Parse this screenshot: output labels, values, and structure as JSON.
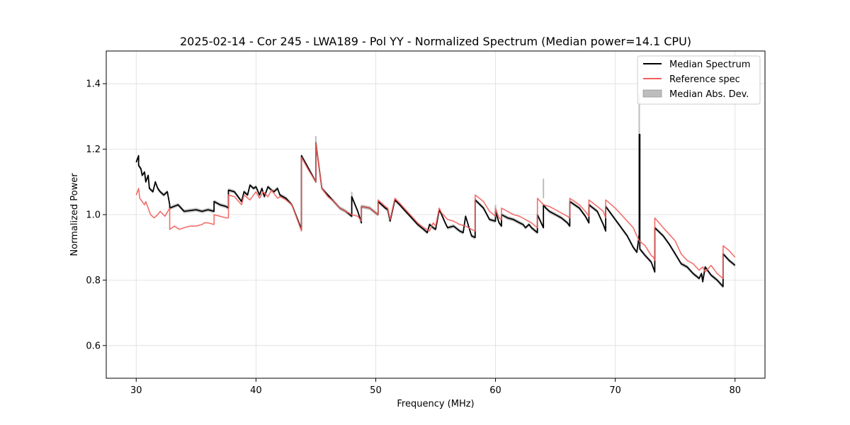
{
  "chart_data": {
    "type": "line",
    "title": "2025-02-14 - Cor 245 - LWA189 - Pol YY - Normalized Spectrum (Median power=14.1 CPU)",
    "xlabel": "Frequency (MHz)",
    "ylabel": "Normalized Power",
    "xlim": [
      27.5,
      82.5
    ],
    "ylim": [
      0.5,
      1.5
    ],
    "xticks": [
      30,
      40,
      50,
      60,
      70,
      80
    ],
    "yticks": [
      0.6,
      0.8,
      1.0,
      1.2,
      1.4
    ],
    "grid": true,
    "legend_position": "top-right",
    "colors": {
      "median": "#000000",
      "reference": "#f25f5c",
      "mad": "#bdbdbd"
    },
    "series": [
      {
        "name": "Median Spectrum",
        "x": [
          30.0,
          30.2,
          30.2,
          30.4,
          30.5,
          30.7,
          30.8,
          31.0,
          31.1,
          31.4,
          31.6,
          31.8,
          32.0,
          32.3,
          32.6,
          32.8,
          32.8,
          33.5,
          34.0,
          35.0,
          35.5,
          36.0,
          36.5,
          36.5,
          37.0,
          37.5,
          37.7,
          37.7,
          38.2,
          38.8,
          39.0,
          39.3,
          39.5,
          39.8,
          40.0,
          40.3,
          40.5,
          40.7,
          41.0,
          41.3,
          41.5,
          41.8,
          42.0,
          42.5,
          43.0,
          43.8,
          43.8,
          44.4,
          45.0,
          45.0,
          45.5,
          46.0,
          46.5,
          47.0,
          47.5,
          48.0,
          48.0,
          48.5,
          48.8,
          48.8,
          49.5,
          50.0,
          50.2,
          50.2,
          50.8,
          51.0,
          51.2,
          51.6,
          52.0,
          52.5,
          53.0,
          53.5,
          54.0,
          54.3,
          54.5,
          54.8,
          55.0,
          55.3,
          55.5,
          55.8,
          56.0,
          56.5,
          57.0,
          57.3,
          57.5,
          58.0,
          58.3,
          58.3,
          59.0,
          59.5,
          60.0,
          60.0,
          60.3,
          60.5,
          60.5,
          61.0,
          61.5,
          62.0,
          62.3,
          62.5,
          62.8,
          63.0,
          63.5,
          63.5,
          64.0,
          64.0,
          64.2,
          64.5,
          65.0,
          65.5,
          66.0,
          66.2,
          66.2,
          67.0,
          67.5,
          67.8,
          67.8,
          68.5,
          69.0,
          69.2,
          69.2,
          70.0,
          70.5,
          71.0,
          71.5,
          71.8,
          72.0,
          72.0,
          72.05,
          72.05,
          72.5,
          73.0,
          73.2,
          73.3,
          73.3,
          74.0,
          74.5,
          75.0,
          75.5,
          76.0,
          76.5,
          77.0,
          77.2,
          77.3,
          77.5,
          78.0,
          78.5,
          79.0,
          79.0,
          79.5,
          80.0
        ],
        "values": [
          1.16,
          1.18,
          1.15,
          1.14,
          1.12,
          1.13,
          1.1,
          1.12,
          1.08,
          1.07,
          1.1,
          1.08,
          1.07,
          1.06,
          1.07,
          1.03,
          1.02,
          1.03,
          1.01,
          1.015,
          1.01,
          1.015,
          1.01,
          1.04,
          1.03,
          1.025,
          1.02,
          1.075,
          1.07,
          1.04,
          1.07,
          1.06,
          1.09,
          1.08,
          1.085,
          1.06,
          1.08,
          1.055,
          1.085,
          1.075,
          1.07,
          1.08,
          1.06,
          1.05,
          1.03,
          0.955,
          1.18,
          1.14,
          1.1,
          1.22,
          1.08,
          1.06,
          1.04,
          1.02,
          1.01,
          0.995,
          1.055,
          1.01,
          0.975,
          1.025,
          1.02,
          1.005,
          1.0,
          1.04,
          1.02,
          1.015,
          0.98,
          1.045,
          1.03,
          1.01,
          0.99,
          0.97,
          0.955,
          0.945,
          0.97,
          0.96,
          0.955,
          1.015,
          1.0,
          0.975,
          0.96,
          0.965,
          0.95,
          0.945,
          0.995,
          0.935,
          0.93,
          1.045,
          1.02,
          0.985,
          0.98,
          1.01,
          0.975,
          0.965,
          1.0,
          0.99,
          0.985,
          0.975,
          0.97,
          0.96,
          0.97,
          0.96,
          0.945,
          1.0,
          0.96,
          1.03,
          1.02,
          1.01,
          1.0,
          0.99,
          0.975,
          0.965,
          1.04,
          1.02,
          0.995,
          0.975,
          1.03,
          1.01,
          0.97,
          0.95,
          1.025,
          0.985,
          0.96,
          0.935,
          0.9,
          0.885,
          0.94,
          1.245,
          1.245,
          0.895,
          0.875,
          0.855,
          0.835,
          0.825,
          0.96,
          0.935,
          0.91,
          0.88,
          0.85,
          0.84,
          0.82,
          0.805,
          0.82,
          0.795,
          0.84,
          0.815,
          0.8,
          0.78,
          0.88,
          0.86,
          0.845
        ]
      },
      {
        "name": "Reference spec",
        "x": [
          30.0,
          30.2,
          30.3,
          30.5,
          30.7,
          30.8,
          31.0,
          31.2,
          31.5,
          31.8,
          32.0,
          32.4,
          32.8,
          32.8,
          33.2,
          33.6,
          34.0,
          34.5,
          35.0,
          35.5,
          35.7,
          36.0,
          36.5,
          36.5,
          37.0,
          37.5,
          37.7,
          37.7,
          38.2,
          38.8,
          39.0,
          39.5,
          40.0,
          40.3,
          40.6,
          41.0,
          41.3,
          41.6,
          41.8,
          42.0,
          42.5,
          43.0,
          43.8,
          43.8,
          44.4,
          45.0,
          45.0,
          45.5,
          46.0,
          46.5,
          47.0,
          47.5,
          48.0,
          48.5,
          48.8,
          48.8,
          49.5,
          50.0,
          50.2,
          50.2,
          50.8,
          51.0,
          51.2,
          51.6,
          52.0,
          52.5,
          53.0,
          53.5,
          54.0,
          54.5,
          54.8,
          55.0,
          55.3,
          55.5,
          56.0,
          56.5,
          57.0,
          57.5,
          58.0,
          58.3,
          58.3,
          59.0,
          59.5,
          60.0,
          60.0,
          60.3,
          60.5,
          60.5,
          61.0,
          61.5,
          62.0,
          62.5,
          63.0,
          63.5,
          63.5,
          64.0,
          64.5,
          65.0,
          65.5,
          66.0,
          66.2,
          66.2,
          67.0,
          67.5,
          67.8,
          67.8,
          68.5,
          69.0,
          69.2,
          69.2,
          70.0,
          70.5,
          71.0,
          71.5,
          71.8,
          72.0,
          72.5,
          73.0,
          73.2,
          73.3,
          73.3,
          74.0,
          74.5,
          75.0,
          75.5,
          76.0,
          76.5,
          77.0,
          77.3,
          77.5,
          78.0,
          78.5,
          79.0,
          79.0,
          79.5,
          80.0
        ],
        "values": [
          1.06,
          1.08,
          1.05,
          1.04,
          1.03,
          1.04,
          1.02,
          1.0,
          0.99,
          1.0,
          1.01,
          0.995,
          1.02,
          0.955,
          0.965,
          0.955,
          0.96,
          0.965,
          0.965,
          0.97,
          0.975,
          0.975,
          0.97,
          1.0,
          0.995,
          0.99,
          0.99,
          1.06,
          1.055,
          1.03,
          1.06,
          1.045,
          1.07,
          1.05,
          1.07,
          1.055,
          1.075,
          1.06,
          1.05,
          1.055,
          1.045,
          1.03,
          0.95,
          1.175,
          1.135,
          1.1,
          1.22,
          1.08,
          1.055,
          1.04,
          1.02,
          1.01,
          1.0,
          0.995,
          0.98,
          1.025,
          1.02,
          1.005,
          1.0,
          1.045,
          1.025,
          1.02,
          0.985,
          1.05,
          1.035,
          1.015,
          0.995,
          0.975,
          0.96,
          0.95,
          0.975,
          0.965,
          1.02,
          1.005,
          0.985,
          0.98,
          0.97,
          0.965,
          0.955,
          0.95,
          1.06,
          1.04,
          1.01,
          0.995,
          1.02,
          0.99,
          0.985,
          1.02,
          1.01,
          1.0,
          0.995,
          0.985,
          0.975,
          0.96,
          1.05,
          1.03,
          1.025,
          1.015,
          1.005,
          0.995,
          0.99,
          1.05,
          1.03,
          1.01,
          0.995,
          1.045,
          1.025,
          1.01,
          0.99,
          1.045,
          1.02,
          1.0,
          0.98,
          0.96,
          0.935,
          0.92,
          0.905,
          0.875,
          0.87,
          0.86,
          0.99,
          0.96,
          0.94,
          0.92,
          0.88,
          0.86,
          0.85,
          0.83,
          0.84,
          0.825,
          0.845,
          0.82,
          0.805,
          0.905,
          0.89,
          0.87
        ]
      }
    ],
    "mad_spikes": [
      {
        "x": 45.0,
        "low": 1.19,
        "high": 1.24
      },
      {
        "x": 48.0,
        "low": 1.03,
        "high": 1.07
      },
      {
        "x": 60.0,
        "low": 1.0,
        "high": 1.03
      },
      {
        "x": 64.0,
        "low": 1.05,
        "high": 1.11
      },
      {
        "x": 72.0,
        "low": 0.9,
        "high": 1.37
      }
    ],
    "legend": [
      {
        "label": "Median Spectrum",
        "kind": "line",
        "color_key": "median"
      },
      {
        "label": "Reference spec",
        "kind": "line",
        "color_key": "reference"
      },
      {
        "label": "Median Abs. Dev.",
        "kind": "patch",
        "color_key": "mad"
      }
    ]
  }
}
